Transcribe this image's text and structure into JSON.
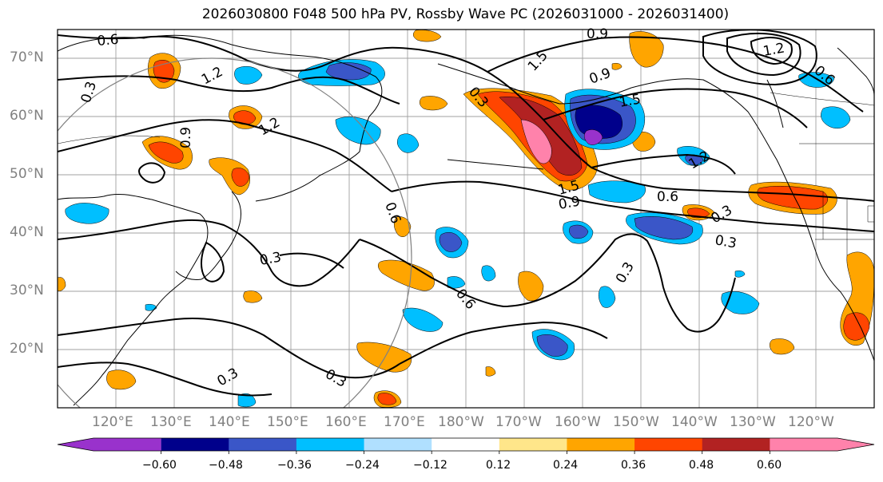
{
  "title": "2026030800 F048 500 hPa PV, Rossby Wave PC (2026031000 - 2026031400)",
  "lat_labels": [
    "70°N",
    "60°N",
    "50°N",
    "40°N",
    "30°N",
    "20°N"
  ],
  "lon_labels": [
    "120°E",
    "130°E",
    "140°E",
    "150°E",
    "160°E",
    "170°E",
    "180°W",
    "170°W",
    "160°W",
    "150°W",
    "140°W",
    "130°W",
    "120°W"
  ],
  "colorbar": {
    "colors": [
      "#9932cc",
      "#00008b",
      "#3a56c8",
      "#00bfff",
      "#b0e0ff",
      "#ffffff",
      "#ffe68a",
      "#ffa500",
      "#ff4500",
      "#b22222",
      "#ff82ab"
    ],
    "labels": [
      "−0.60",
      "−0.48",
      "−0.36",
      "−0.24",
      "−0.12",
      "0.12",
      "0.24",
      "0.36",
      "0.48",
      "0.60"
    ]
  },
  "contour_labels": [
    "0.6",
    "0.3",
    "1.2",
    "0.9",
    "1.5",
    "0.9",
    "0.3",
    "1.2",
    "0.9",
    "1.5",
    "1.2",
    "0.6",
    "0.3",
    "0.3",
    "0.6",
    "0.3",
    "0.6",
    "0.3",
    "0.3",
    "0.3",
    "0.6",
    "0.9",
    "1.2",
    "1.5"
  ]
}
